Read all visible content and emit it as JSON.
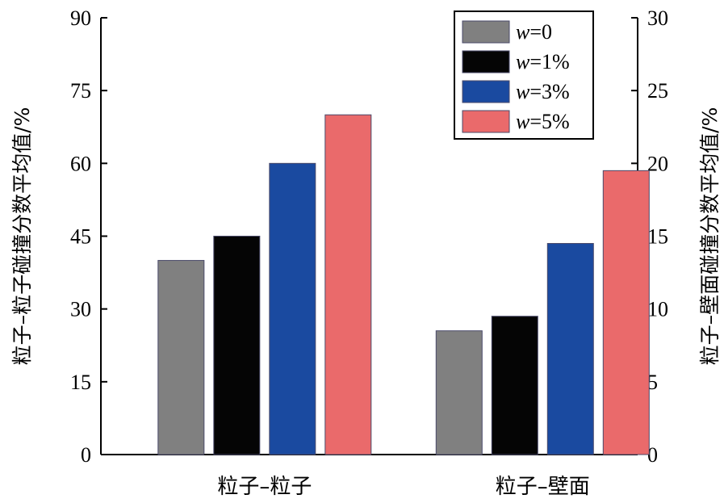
{
  "chart_data": {
    "type": "bar",
    "categories": [
      "粒子–粒子",
      "粒子–壁面"
    ],
    "series": [
      {
        "name": "w=0",
        "var": "w",
        "value_text": "=0",
        "color": "#808080",
        "values": [
          40,
          8.5
        ]
      },
      {
        "name": "w=1%",
        "var": "w",
        "value_text": "=1%",
        "color": "#050505",
        "values": [
          45,
          9.5
        ]
      },
      {
        "name": "w=3%",
        "var": "w",
        "value_text": "=3%",
        "color": "#1a4aa0",
        "values": [
          60,
          14.5
        ]
      },
      {
        "name": "w=5%",
        "var": "w",
        "value_text": "=5%",
        "color": "#ea6a6b",
        "values": [
          70,
          19.5
        ]
      }
    ],
    "axes": {
      "y_left": {
        "label": "粒子–粒子碰撞分数平均值/%",
        "range": [
          0,
          90
        ],
        "ticks": [
          "0",
          "15",
          "30",
          "45",
          "60",
          "75",
          "90"
        ],
        "applies_to_category": "粒子–粒子"
      },
      "y_right": {
        "label": "粒子–壁面碰撞分数平均值/%",
        "range": [
          0,
          30
        ],
        "ticks": [
          "0",
          "5",
          "10",
          "15",
          "20",
          "25",
          "30"
        ],
        "applies_to_category": "粒子–壁面"
      }
    },
    "legend_position": "top-right",
    "grid": false
  }
}
